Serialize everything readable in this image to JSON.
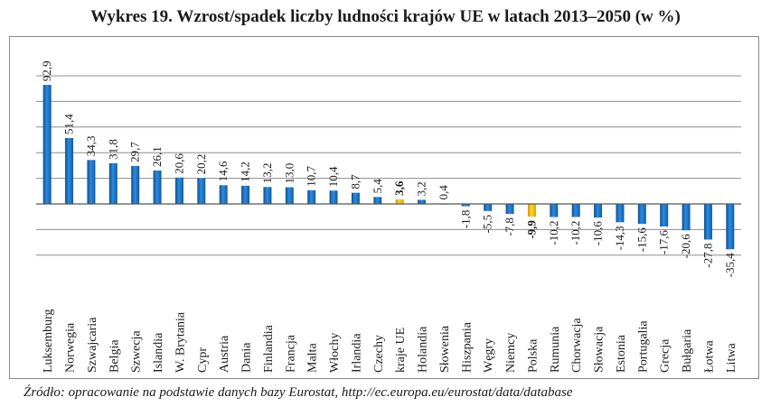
{
  "chart_data": {
    "type": "bar",
    "title": "Wykres 19. Wzrost/spadek liczby ludności krajów UE w latach 2013–2050 (w %)",
    "xlabel": "",
    "ylabel": "",
    "ylim": [
      -40,
      100
    ],
    "grid": true,
    "categories": [
      "Luksemburg",
      "Norwegia",
      "Szwajcaria",
      "Belgia",
      "Szwecja",
      "Islandia",
      "W. Brytania",
      "Cypr",
      "Austria",
      "Dania",
      "Finlandia",
      "Francja",
      "Malta",
      "Włochy",
      "Irlandia",
      "Czechy",
      "kraje UE",
      "Holandia",
      "Słowenia",
      "Hiszpania",
      "Węgry",
      "Niemcy",
      "Polska",
      "Rumunia",
      "Chorwacja",
      "Słowacja",
      "Estonia",
      "Portugalia",
      "Grecja",
      "Bułgaria",
      "Łotwa",
      "Litwa"
    ],
    "values": [
      92.9,
      51.4,
      34.3,
      31.8,
      29.7,
      26.1,
      20.6,
      20.2,
      14.6,
      14.2,
      13.2,
      13.0,
      10.7,
      10.4,
      8.7,
      5.4,
      3.6,
      3.2,
      0.4,
      -1.8,
      -5.5,
      -7.8,
      -9.9,
      -10.2,
      -10.2,
      -10.6,
      -14.3,
      -15.6,
      -17.6,
      -20.6,
      -27.8,
      -35.4
    ],
    "value_labels": [
      "92,9",
      "51,4",
      "34,3",
      "31,8",
      "29,7",
      "26,1",
      "20,6",
      "20,2",
      "14,6",
      "14,2",
      "13,2",
      "13,0",
      "10,7",
      "10,4",
      "8,7",
      "5,4",
      "3,6",
      "3,2",
      "0,4",
      "-1,8",
      "-5,5",
      "-7,8",
      "-9,9",
      "-10,2",
      "-10,2",
      "-10,6",
      "-14,3",
      "-15,6",
      "-17,6",
      "-20,6",
      "-27,8",
      "-35,4"
    ],
    "highlight": {
      "kraje UE": "#f2c200",
      "Polska": "#f2c200"
    },
    "bar_color": "#1f78c8"
  },
  "source": {
    "label": "Źródło:",
    "text": "opracowanie na podstawie danych bazy Eurostat, http://ec.europa.eu/eurostat/data/database"
  }
}
